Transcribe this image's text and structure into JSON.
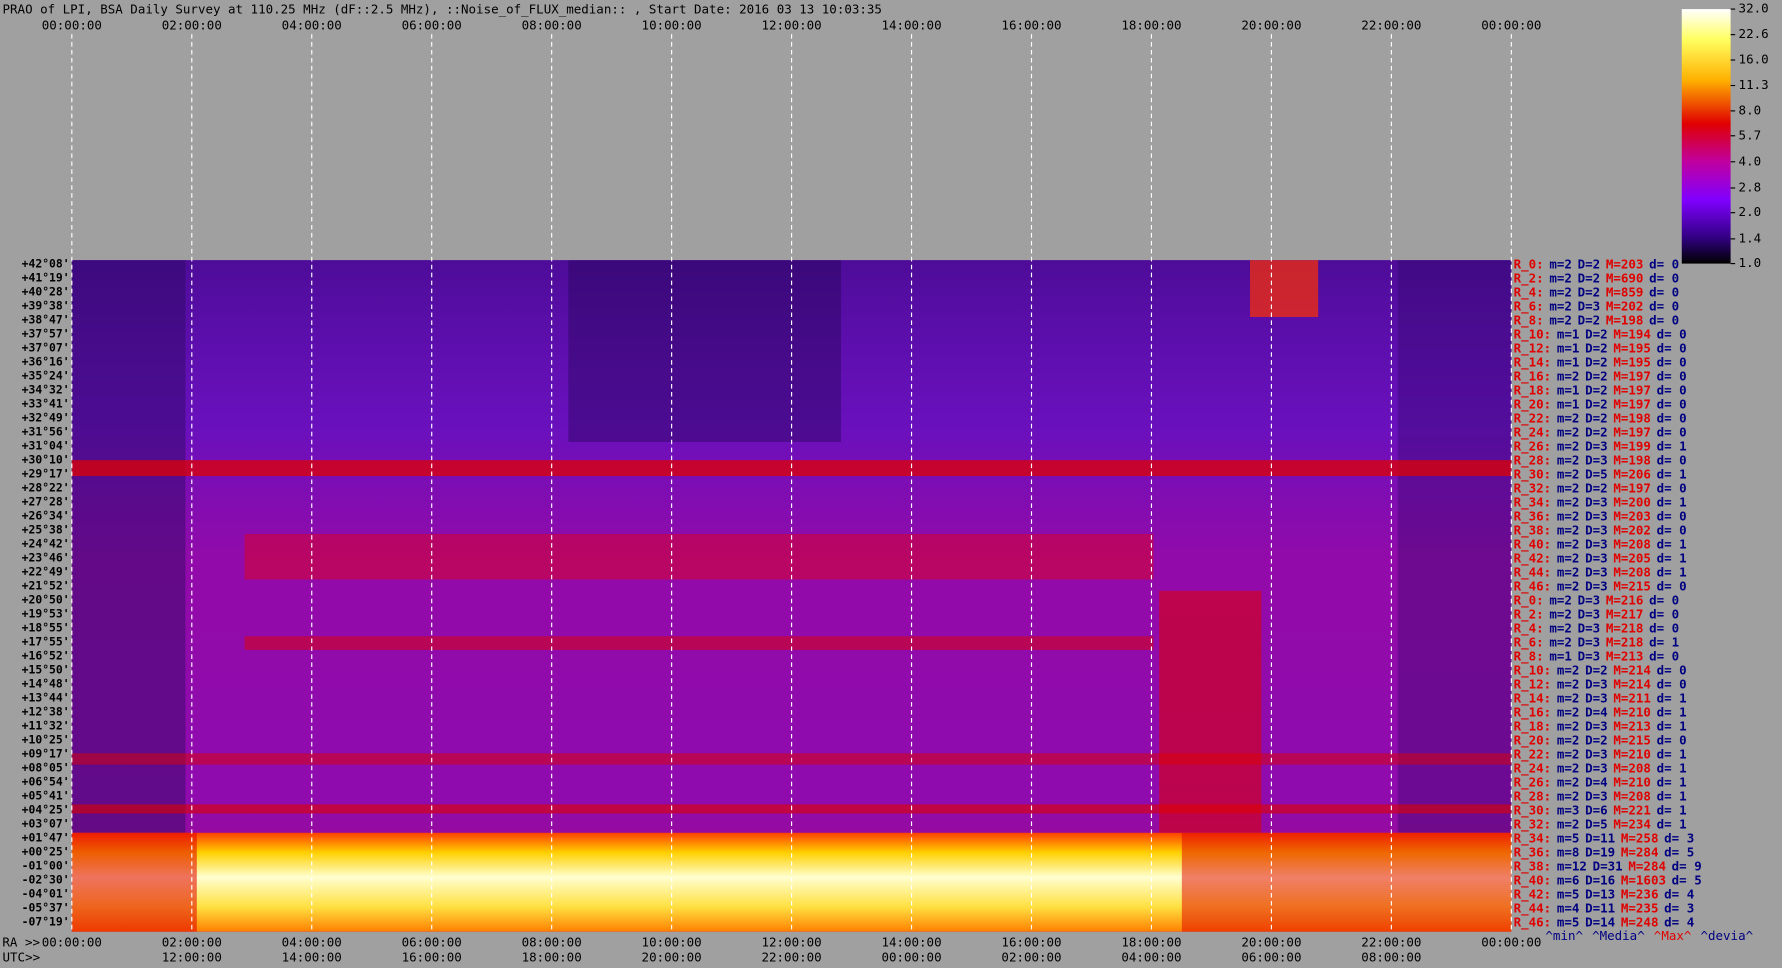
{
  "title": "PRAO of LPI, BSA Daily Survey at 110.25 MHz (dF::2.5 MHz), ::Noise_of_FLUX_median:: , Start Date: 2016 03 13 10:03:35",
  "top_axis": [
    "00:00:00",
    "02:00:00",
    "04:00:00",
    "06:00:00",
    "08:00:00",
    "10:00:00",
    "12:00:00",
    "14:00:00",
    "16:00:00",
    "18:00:00",
    "20:00:00",
    "22:00:00",
    "00:00:00"
  ],
  "ra_axis": {
    "prefix": "RA >>",
    "labels": [
      "00:00:00",
      "02:00:00",
      "04:00:00",
      "06:00:00",
      "08:00:00",
      "10:00:00",
      "12:00:00",
      "14:00:00",
      "16:00:00",
      "18:00:00",
      "20:00:00",
      "22:00:00",
      "00:00:00"
    ]
  },
  "utc_axis": {
    "prefix": "UTC>>",
    "labels": [
      "12:00:00",
      "14:00:00",
      "16:00:00",
      "18:00:00",
      "20:00:00",
      "22:00:00",
      "00:00:00",
      "02:00:00",
      "04:00:00",
      "06:00:00",
      "08:00:00"
    ]
  },
  "dec_labels": [
    "+42°08'",
    "+41°19'",
    "+40°28'",
    "+39°38'",
    "+38°47'",
    "+37°57'",
    "+37°07'",
    "+36°16'",
    "+35°24'",
    "+34°32'",
    "+33°41'",
    "+32°49'",
    "+31°56'",
    "+31°04'",
    "+30°10'",
    "+29°17'",
    "+28°22'",
    "+27°28'",
    "+26°34'",
    "+25°38'",
    "+24°42'",
    "+23°46'",
    "+22°49'",
    "+21°52'",
    "+20°50'",
    "+19°53'",
    "+18°55'",
    "+17°55'",
    "+16°52'",
    "+15°50'",
    "+14°48'",
    "+13°44'",
    "+12°38'",
    "+11°32'",
    "+10°25'",
    "+09°17'",
    "+08°05'",
    "+06°54'",
    "+05°41'",
    "+04°25'",
    "+03°07'",
    "+01°47'",
    "+00°25'",
    "-01°00'",
    "-02°30'",
    "-04°01'",
    "-05°37'",
    "-07°19'"
  ],
  "stats_header": [
    "^min^",
    "^Media^",
    "^Max^",
    "^devia^"
  ],
  "stats": [
    [
      "R_0:",
      "m=2",
      "D=2",
      "M=203",
      "d= 0"
    ],
    [
      "R_2:",
      "m=2",
      "D=2",
      "M=690",
      "d= 0"
    ],
    [
      "R_4:",
      "m=2",
      "D=2",
      "M=859",
      "d= 0"
    ],
    [
      "R_6:",
      "m=2",
      "D=3",
      "M=202",
      "d= 0"
    ],
    [
      "R_8:",
      "m=2",
      "D=2",
      "M=198",
      "d= 0"
    ],
    [
      "R_10:",
      "m=1",
      "D=2",
      "M=194",
      "d= 0"
    ],
    [
      "R_12:",
      "m=1",
      "D=2",
      "M=195",
      "d= 0"
    ],
    [
      "R_14:",
      "m=1",
      "D=2",
      "M=195",
      "d= 0"
    ],
    [
      "R_16:",
      "m=2",
      "D=2",
      "M=197",
      "d= 0"
    ],
    [
      "R_18:",
      "m=1",
      "D=2",
      "M=197",
      "d= 0"
    ],
    [
      "R_20:",
      "m=1",
      "D=2",
      "M=197",
      "d= 0"
    ],
    [
      "R_22:",
      "m=2",
      "D=2",
      "M=198",
      "d= 0"
    ],
    [
      "R_24:",
      "m=2",
      "D=2",
      "M=197",
      "d= 0"
    ],
    [
      "R_26:",
      "m=2",
      "D=3",
      "M=199",
      "d= 1"
    ],
    [
      "R_28:",
      "m=2",
      "D=3",
      "M=198",
      "d= 0"
    ],
    [
      "R_30:",
      "m=2",
      "D=5",
      "M=206",
      "d= 1"
    ],
    [
      "R_32:",
      "m=2",
      "D=2",
      "M=197",
      "d= 0"
    ],
    [
      "R_34:",
      "m=2",
      "D=3",
      "M=200",
      "d= 1"
    ],
    [
      "R_36:",
      "m=2",
      "D=3",
      "M=203",
      "d= 0"
    ],
    [
      "R_38:",
      "m=2",
      "D=3",
      "M=202",
      "d= 0"
    ],
    [
      "R_40:",
      "m=2",
      "D=3",
      "M=208",
      "d= 1"
    ],
    [
      "R_42:",
      "m=2",
      "D=3",
      "M=205",
      "d= 1"
    ],
    [
      "R_44:",
      "m=2",
      "D=3",
      "M=208",
      "d= 1"
    ],
    [
      "R_46:",
      "m=2",
      "D=3",
      "M=215",
      "d= 0"
    ],
    [
      "R_0:",
      "m=2",
      "D=3",
      "M=216",
      "d= 0"
    ],
    [
      "R_2:",
      "m=2",
      "D=3",
      "M=217",
      "d= 0"
    ],
    [
      "R_4:",
      "m=2",
      "D=3",
      "M=218",
      "d= 0"
    ],
    [
      "R_6:",
      "m=2",
      "D=3",
      "M=218",
      "d= 1"
    ],
    [
      "R_8:",
      "m=1",
      "D=3",
      "M=213",
      "d= 0"
    ],
    [
      "R_10:",
      "m=2",
      "D=2",
      "M=214",
      "d= 0"
    ],
    [
      "R_12:",
      "m=2",
      "D=3",
      "M=214",
      "d= 0"
    ],
    [
      "R_14:",
      "m=2",
      "D=3",
      "M=211",
      "d= 1"
    ],
    [
      "R_16:",
      "m=2",
      "D=4",
      "M=210",
      "d= 1"
    ],
    [
      "R_18:",
      "m=2",
      "D=3",
      "M=213",
      "d= 1"
    ],
    [
      "R_20:",
      "m=2",
      "D=2",
      "M=215",
      "d= 0"
    ],
    [
      "R_22:",
      "m=2",
      "D=3",
      "M=210",
      "d= 1"
    ],
    [
      "R_24:",
      "m=2",
      "D=3",
      "M=208",
      "d= 1"
    ],
    [
      "R_26:",
      "m=2",
      "D=4",
      "M=210",
      "d= 1"
    ],
    [
      "R_28:",
      "m=2",
      "D=3",
      "M=208",
      "d= 1"
    ],
    [
      "R_30:",
      "m=3",
      "D=6",
      "M=221",
      "d= 1"
    ],
    [
      "R_32:",
      "m=2",
      "D=5",
      "M=234",
      "d= 1"
    ],
    [
      "R_34:",
      "m=5",
      "D=11",
      "M=258",
      "d= 3"
    ],
    [
      "R_36:",
      "m=8",
      "D=19",
      "M=284",
      "d= 5"
    ],
    [
      "R_38:",
      "m=12",
      "D=31",
      "M=284",
      "d= 9"
    ],
    [
      "R_40:",
      "m=6",
      "D=16",
      "M=1603",
      "d= 5"
    ],
    [
      "R_42:",
      "m=5",
      "D=13",
      "M=236",
      "d= 4"
    ],
    [
      "R_44:",
      "m=4",
      "D=11",
      "M=235",
      "d= 3"
    ],
    [
      "R_46:",
      "m=5",
      "D=14",
      "M=248",
      "d= 4"
    ]
  ],
  "colorbar": {
    "log": true,
    "lim": [
      1,
      32
    ],
    "ticks": [
      {
        "value": 32,
        "label": "32.0"
      },
      22.6,
      {
        "value": 16,
        "label": "16.0"
      },
      11.3,
      {
        "value": 8,
        "label": "8.0"
      },
      5.7,
      {
        "value": 4,
        "label": "4.0"
      },
      2.8,
      {
        "value": 2,
        "label": "2.0"
      },
      1.4,
      {
        "value": 1,
        "label": "1.0"
      }
    ]
  }
}
